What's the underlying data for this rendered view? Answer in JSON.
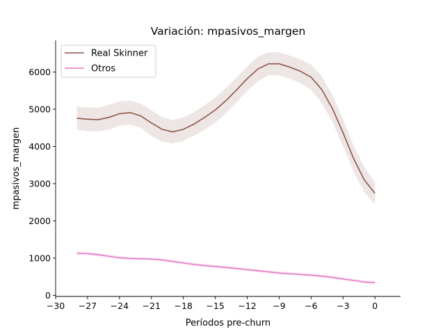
{
  "chart_data": {
    "type": "line",
    "title": "Variación: mpasivos_margen",
    "xlabel": "Períodos pre-churn",
    "ylabel": "mpasivos_margen",
    "xlim": [
      -30,
      2.4
    ],
    "ylim": [
      -30,
      6850
    ],
    "xticks": [
      -30,
      -27,
      -24,
      -21,
      -18,
      -15,
      -12,
      -9,
      -6,
      -3,
      0
    ],
    "xtick_labels": [
      "−30",
      "−27",
      "−24",
      "−21",
      "−18",
      "−15",
      "−12",
      "−9",
      "−6",
      "−3",
      "0"
    ],
    "yticks": [
      0,
      1000,
      2000,
      3000,
      4000,
      5000,
      6000
    ],
    "ytick_labels": [
      "0",
      "1000",
      "2000",
      "3000",
      "4000",
      "5000",
      "6000"
    ],
    "grid": false,
    "legend_position": "top-left",
    "x": [
      -28,
      -27,
      -26,
      -25,
      -24,
      -23,
      -22,
      -21,
      -20,
      -19,
      -18,
      -17,
      -16,
      -15,
      -14,
      -13,
      -12,
      -11,
      -10,
      -9,
      -8,
      -7,
      -6,
      -5,
      -4,
      -3,
      -2,
      -1,
      0
    ],
    "series": [
      {
        "name": "Real Skinner",
        "color": "#8c564b",
        "values": [
          4760,
          4730,
          4720,
          4780,
          4880,
          4910,
          4820,
          4630,
          4460,
          4390,
          4460,
          4600,
          4780,
          4980,
          5230,
          5520,
          5820,
          6080,
          6220,
          6220,
          6130,
          6020,
          5860,
          5530,
          5020,
          4370,
          3670,
          3100,
          2740
        ],
        "ci_low": [
          4450,
          4410,
          4400,
          4450,
          4560,
          4590,
          4500,
          4280,
          4130,
          4080,
          4150,
          4290,
          4450,
          4640,
          4890,
          5190,
          5490,
          5750,
          5910,
          5910,
          5820,
          5700,
          5520,
          5170,
          4660,
          4010,
          3320,
          2770,
          2440
        ],
        "ci_high": [
          5070,
          5050,
          5040,
          5120,
          5210,
          5230,
          5150,
          4970,
          4790,
          4710,
          4780,
          4920,
          5110,
          5320,
          5570,
          5850,
          6150,
          6410,
          6530,
          6530,
          6440,
          6340,
          6200,
          5890,
          5380,
          4730,
          4020,
          3440,
          3040
        ]
      },
      {
        "name": "Otros",
        "color": "#e377c2",
        "values": [
          1130,
          1120,
          1090,
          1050,
          1010,
          990,
          985,
          975,
          950,
          910,
          870,
          830,
          800,
          775,
          750,
          720,
          690,
          660,
          630,
          600,
          580,
          560,
          540,
          515,
          480,
          440,
          400,
          360,
          340
        ],
        "ci_low": [
          1080,
          1070,
          1040,
          1000,
          965,
          945,
          940,
          930,
          905,
          865,
          825,
          785,
          755,
          730,
          705,
          675,
          645,
          615,
          585,
          555,
          535,
          515,
          495,
          470,
          435,
          395,
          355,
          315,
          290
        ],
        "ci_high": [
          1180,
          1170,
          1140,
          1100,
          1055,
          1035,
          1030,
          1020,
          995,
          955,
          915,
          875,
          845,
          820,
          795,
          765,
          735,
          705,
          675,
          645,
          625,
          605,
          585,
          560,
          525,
          485,
          445,
          405,
          390
        ]
      }
    ]
  }
}
